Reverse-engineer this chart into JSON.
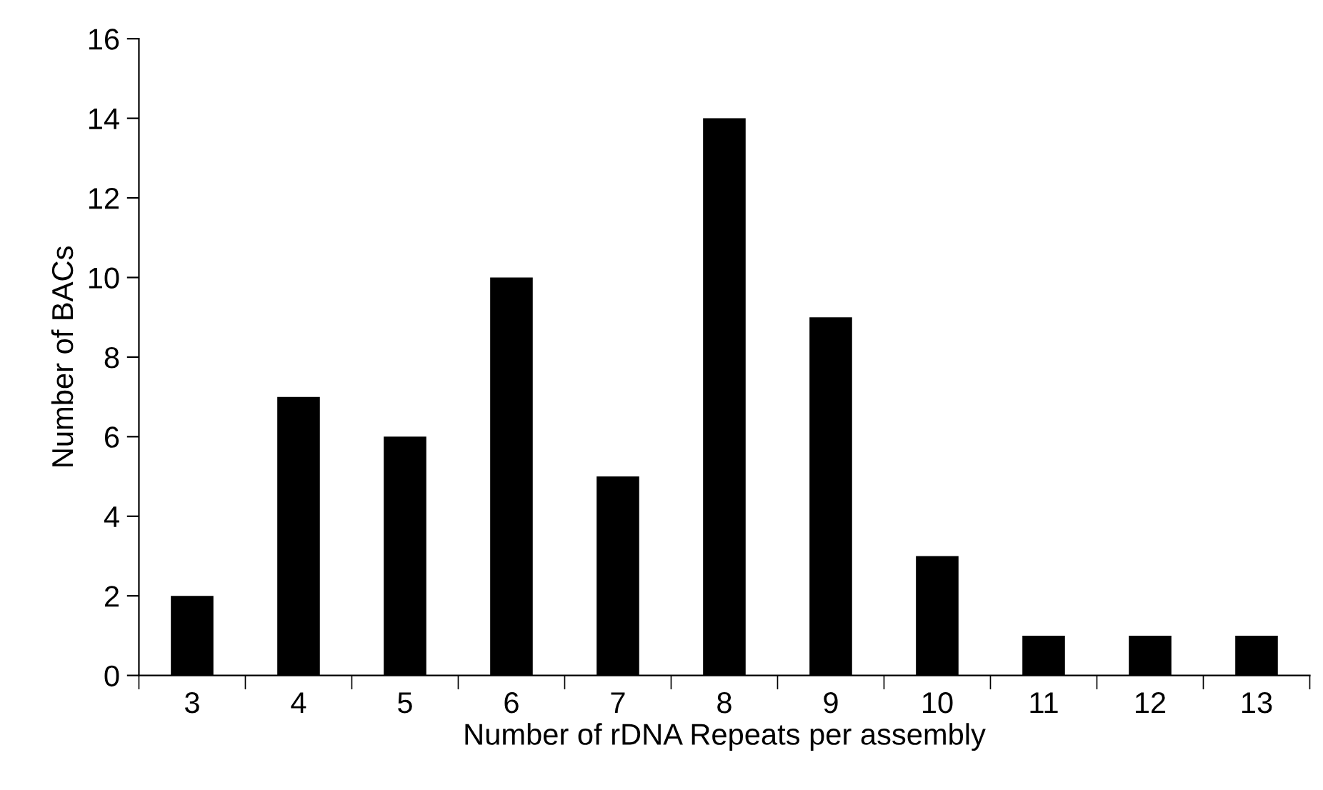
{
  "chart_data": {
    "type": "bar",
    "xlabel": "Number of rDNA Repeats per assembly",
    "ylabel": "Number of BACs",
    "categories": [
      "3",
      "4",
      "5",
      "6",
      "7",
      "8",
      "9",
      "10",
      "11",
      "12",
      "13"
    ],
    "values": [
      2,
      7,
      6,
      10,
      5,
      14,
      9,
      3,
      1,
      1,
      1
    ],
    "color": "#000000",
    "ylim": [
      0,
      16
    ],
    "yticks": [
      0,
      2,
      4,
      6,
      8,
      10,
      12,
      14,
      16
    ],
    "grid": false
  }
}
